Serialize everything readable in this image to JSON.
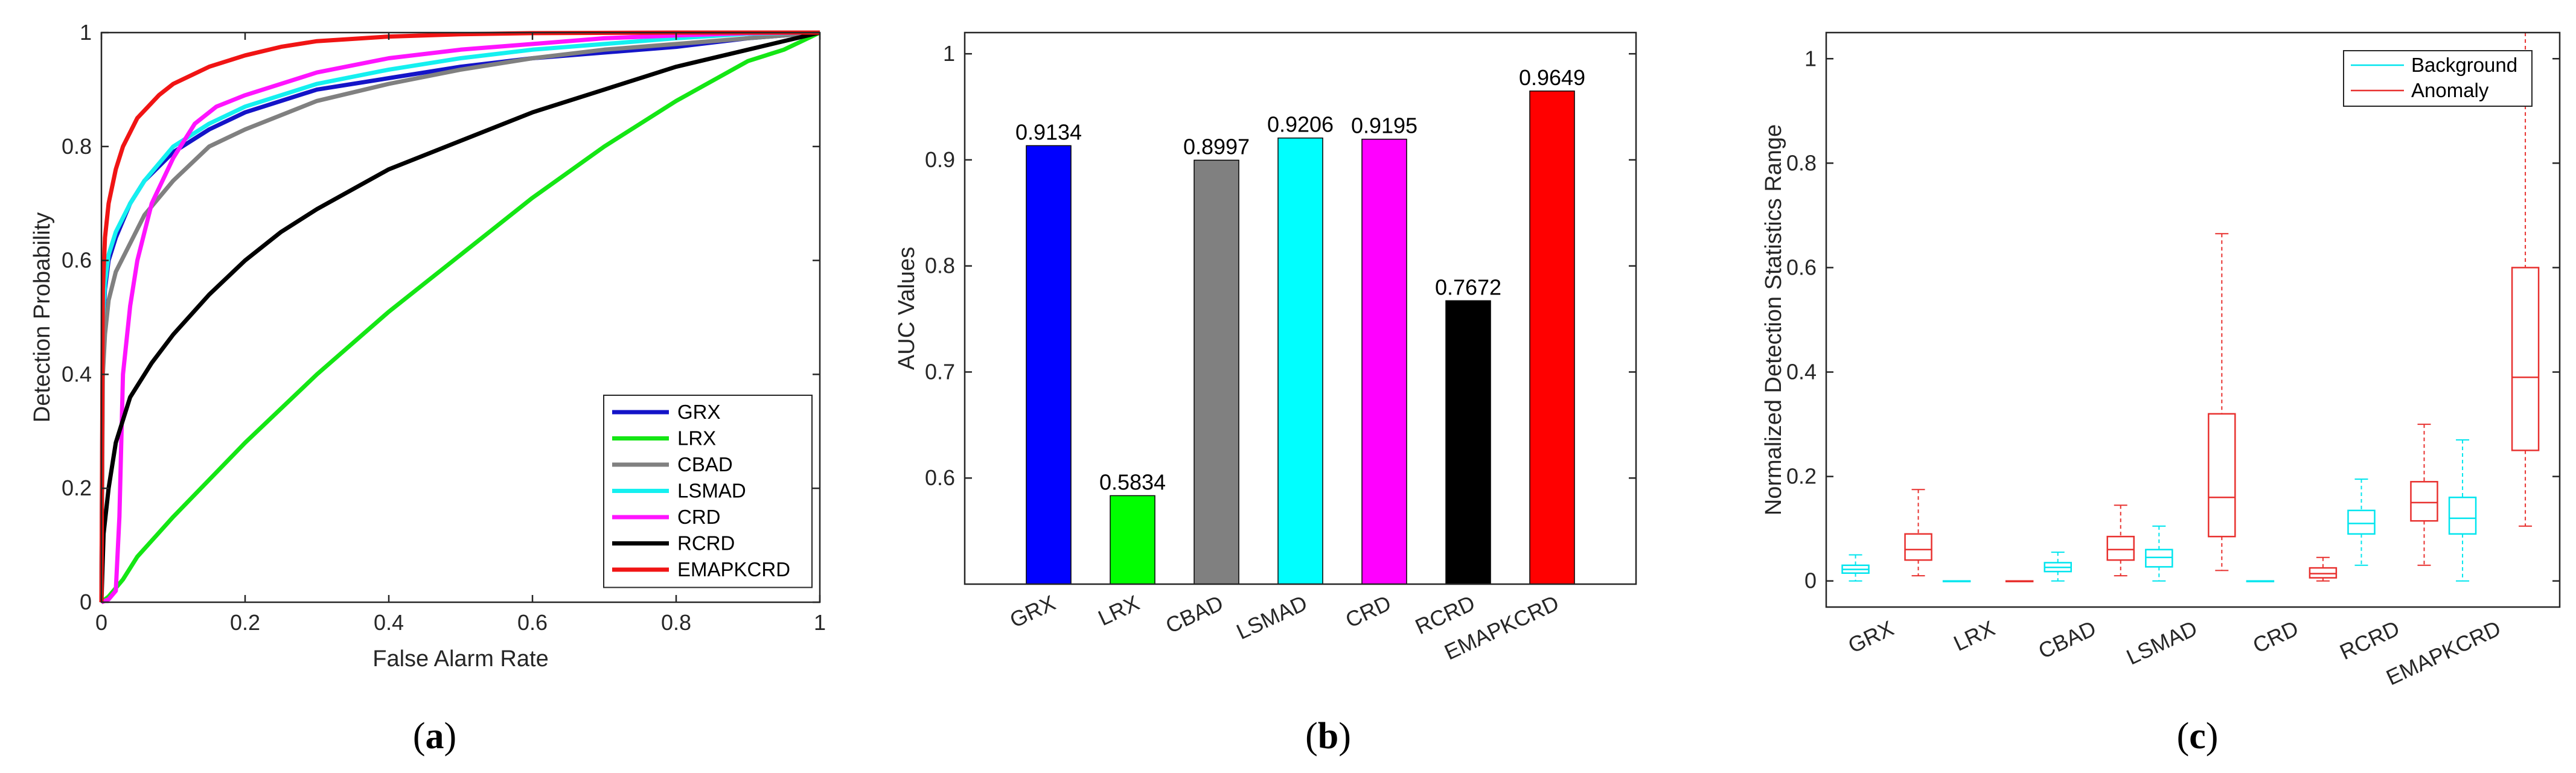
{
  "chart_data": [
    {
      "type": "line",
      "title": "",
      "caption_open": "(",
      "caption_letter": "a",
      "caption_close": ")",
      "xlabel": "False Alarm Rate",
      "ylabel": "Detection Probability",
      "xlim": [
        0,
        1
      ],
      "ylim": [
        0,
        1
      ],
      "xticks": [
        0,
        0.2,
        0.4,
        0.6,
        0.8,
        1
      ],
      "xtick_labels": [
        "0",
        "0.2",
        "0.4",
        "0.6",
        "0.8",
        "1"
      ],
      "yticks": [
        0,
        0.2,
        0.4,
        0.6,
        0.8,
        1
      ],
      "ytick_labels": [
        "0",
        "0.2",
        "0.4",
        "0.6",
        "0.8",
        "1"
      ],
      "legend_position": "bottom-right",
      "series": [
        {
          "name": "GRX",
          "color": "#1414c8",
          "x": [
            0,
            0.002,
            0.005,
            0.01,
            0.02,
            0.04,
            0.06,
            0.1,
            0.15,
            0.2,
            0.3,
            0.4,
            0.5,
            0.6,
            0.7,
            0.8,
            0.9,
            1
          ],
          "y": [
            0,
            0.48,
            0.55,
            0.6,
            0.64,
            0.7,
            0.74,
            0.79,
            0.83,
            0.86,
            0.9,
            0.92,
            0.94,
            0.955,
            0.965,
            0.975,
            0.99,
            1
          ]
        },
        {
          "name": "LRX",
          "color": "#14e614",
          "x": [
            0,
            0.01,
            0.03,
            0.05,
            0.1,
            0.2,
            0.3,
            0.4,
            0.5,
            0.6,
            0.7,
            0.8,
            0.9,
            0.95,
            1
          ],
          "y": [
            0,
            0.01,
            0.04,
            0.08,
            0.15,
            0.28,
            0.4,
            0.51,
            0.61,
            0.71,
            0.8,
            0.88,
            0.95,
            0.97,
            1
          ]
        },
        {
          "name": "CBAD",
          "color": "#808080",
          "x": [
            0,
            0.002,
            0.005,
            0.01,
            0.02,
            0.04,
            0.06,
            0.1,
            0.15,
            0.2,
            0.3,
            0.4,
            0.5,
            0.6,
            0.7,
            0.8,
            0.9,
            1
          ],
          "y": [
            0,
            0.4,
            0.47,
            0.53,
            0.58,
            0.63,
            0.68,
            0.74,
            0.8,
            0.83,
            0.88,
            0.91,
            0.935,
            0.955,
            0.97,
            0.98,
            0.99,
            1
          ]
        },
        {
          "name": "LSMAD",
          "color": "#14f0f0",
          "x": [
            0,
            0.002,
            0.005,
            0.01,
            0.02,
            0.04,
            0.06,
            0.1,
            0.15,
            0.2,
            0.3,
            0.4,
            0.5,
            0.6,
            0.7,
            0.8,
            0.9,
            1
          ],
          "y": [
            0,
            0.5,
            0.56,
            0.61,
            0.65,
            0.7,
            0.74,
            0.8,
            0.84,
            0.87,
            0.91,
            0.935,
            0.955,
            0.97,
            0.98,
            0.99,
            0.998,
            1
          ]
        },
        {
          "name": "CRD",
          "color": "#ff14ff",
          "x": [
            0,
            0.01,
            0.02,
            0.025,
            0.03,
            0.04,
            0.05,
            0.07,
            0.1,
            0.13,
            0.16,
            0.2,
            0.3,
            0.4,
            0.5,
            0.6,
            0.7,
            0.8,
            0.9,
            1
          ],
          "y": [
            0,
            0.005,
            0.02,
            0.15,
            0.4,
            0.52,
            0.6,
            0.7,
            0.78,
            0.84,
            0.87,
            0.89,
            0.93,
            0.955,
            0.97,
            0.98,
            0.99,
            0.995,
            0.999,
            1
          ]
        },
        {
          "name": "RCRD",
          "color": "#000000",
          "x": [
            0,
            0.003,
            0.01,
            0.02,
            0.04,
            0.07,
            0.1,
            0.15,
            0.2,
            0.25,
            0.3,
            0.4,
            0.5,
            0.6,
            0.7,
            0.8,
            0.9,
            1
          ],
          "y": [
            0,
            0.12,
            0.2,
            0.28,
            0.36,
            0.42,
            0.47,
            0.54,
            0.6,
            0.65,
            0.69,
            0.76,
            0.81,
            0.86,
            0.9,
            0.94,
            0.97,
            1
          ]
        },
        {
          "name": "EMAPKCRD",
          "color": "#f01414",
          "x": [
            0,
            0.002,
            0.005,
            0.01,
            0.02,
            0.03,
            0.05,
            0.08,
            0.1,
            0.15,
            0.2,
            0.25,
            0.3,
            0.4,
            0.5,
            0.6,
            0.8,
            1
          ],
          "y": [
            0,
            0.55,
            0.64,
            0.7,
            0.76,
            0.8,
            0.85,
            0.89,
            0.91,
            0.94,
            0.96,
            0.975,
            0.985,
            0.993,
            0.997,
            0.999,
            1,
            1
          ]
        }
      ]
    },
    {
      "type": "bar",
      "title": "",
      "caption_open": "(",
      "caption_letter": "b",
      "caption_close": ")",
      "xlabel": "",
      "ylabel": "AUC Values",
      "ylim": [
        0.5,
        1.02
      ],
      "yticks": [
        0.6,
        0.7,
        0.8,
        0.9,
        1
      ],
      "ytick_labels": [
        "0.6",
        "0.7",
        "0.8",
        "0.9",
        "1"
      ],
      "categories": [
        "GRX",
        "LRX",
        "CBAD",
        "LSMAD",
        "CRD",
        "RCRD",
        "EMAPKCRD"
      ],
      "values": [
        0.9134,
        0.5834,
        0.8997,
        0.9206,
        0.9195,
        0.7672,
        0.9649
      ],
      "value_labels": [
        "0.9134",
        "0.5834",
        "0.8997",
        "0.9206",
        "0.9195",
        "0.7672",
        "0.9649"
      ],
      "colors": [
        "#0000ff",
        "#00ff00",
        "#808080",
        "#00ffff",
        "#ff00ff",
        "#000000",
        "#ff0000"
      ]
    },
    {
      "type": "box",
      "title": "",
      "caption_open": "(",
      "caption_letter": "c",
      "caption_close": ")",
      "xlabel": "",
      "ylabel": "Normalized Detection Statistics Range",
      "ylim": [
        -0.05,
        1.05
      ],
      "yticks": [
        0,
        0.2,
        0.4,
        0.6,
        0.8,
        1
      ],
      "ytick_labels": [
        "0",
        "0.2",
        "0.4",
        "0.6",
        "0.8",
        "1"
      ],
      "categories": [
        "GRX",
        "LRX",
        "CBAD",
        "LSMAD",
        "CRD",
        "RCRD",
        "EMAPKCRD"
      ],
      "legend_position": "top-right",
      "series": [
        {
          "name": "Background",
          "color": "#00e5ee",
          "stats": [
            {
              "min": 0.0,
              "q1": 0.015,
              "median": 0.022,
              "q3": 0.03,
              "max": 0.05
            },
            {
              "min": 0.0,
              "q1": 0.0,
              "median": 0.0,
              "q3": 0.0,
              "max": 0.0
            },
            {
              "min": 0.0,
              "q1": 0.018,
              "median": 0.026,
              "q3": 0.035,
              "max": 0.055
            },
            {
              "min": 0.0,
              "q1": 0.027,
              "median": 0.045,
              "q3": 0.06,
              "max": 0.105
            },
            {
              "min": 0.0,
              "q1": 0.0,
              "median": 0.0,
              "q3": 0.0,
              "max": 0.0
            },
            {
              "min": 0.03,
              "q1": 0.09,
              "median": 0.11,
              "q3": 0.135,
              "max": 0.195
            },
            {
              "min": 0.0,
              "q1": 0.09,
              "median": 0.12,
              "q3": 0.16,
              "max": 0.27
            }
          ]
        },
        {
          "name": "Anomaly",
          "color": "#e8312f",
          "stats": [
            {
              "min": 0.01,
              "q1": 0.04,
              "median": 0.06,
              "q3": 0.09,
              "max": 0.175
            },
            {
              "min": 0.0,
              "q1": 0.0,
              "median": 0.0,
              "q3": 0.0,
              "max": 0.0
            },
            {
              "min": 0.01,
              "q1": 0.04,
              "median": 0.06,
              "q3": 0.085,
              "max": 0.145
            },
            {
              "min": 0.02,
              "q1": 0.085,
              "median": 0.16,
              "q3": 0.32,
              "max": 0.665
            },
            {
              "min": 0.0,
              "q1": 0.006,
              "median": 0.014,
              "q3": 0.025,
              "max": 0.045
            },
            {
              "min": 0.03,
              "q1": 0.115,
              "median": 0.15,
              "q3": 0.19,
              "max": 0.3
            },
            {
              "min": 0.105,
              "q1": 0.25,
              "median": 0.39,
              "q3": 0.6,
              "max": 1.05
            }
          ]
        }
      ]
    }
  ]
}
